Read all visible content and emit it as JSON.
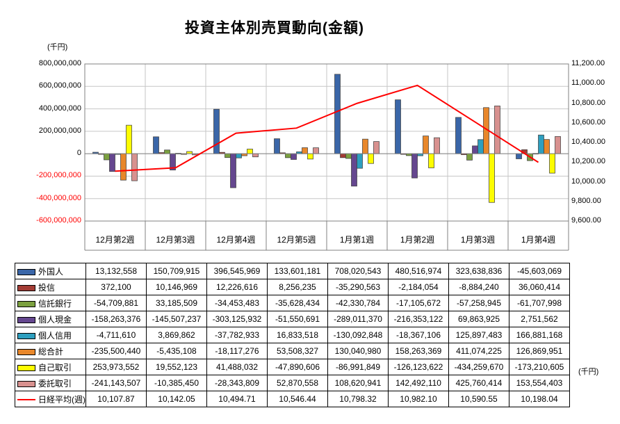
{
  "title": "投資主体別売買動向(金額)",
  "left_axis_unit": "(千円)",
  "right_axis_unit": "(千円)",
  "chart_data": {
    "type": "bar+line",
    "title": "投資主体別売買動向(金額)",
    "legend_position": "table-left-column",
    "grid": true,
    "categories": [
      "12月第2週",
      "12月第3週",
      "12月第4週",
      "12月第5週",
      "1月第1週",
      "1月第2週",
      "1月第3週",
      "1月第4週"
    ],
    "left_axis": {
      "min": -600000000,
      "max": 800000000,
      "step": 200000000,
      "unit": "(千円)"
    },
    "right_axis": {
      "min": 9600,
      "max": 11200,
      "step": 200,
      "unit": "(千円)"
    },
    "series": [
      {
        "name": "外国人",
        "type": "bar",
        "color": "#3A66A8",
        "values": [
          13132558,
          150709915,
          396545969,
          133601181,
          708020543,
          480516974,
          323638836,
          -45603069
        ]
      },
      {
        "name": "投信",
        "type": "bar",
        "color": "#A33C35",
        "values": [
          372100,
          10146969,
          12226616,
          8256235,
          -35290563,
          -2184054,
          -8884240,
          36060414
        ]
      },
      {
        "name": "信託銀行",
        "type": "bar",
        "color": "#7BA03F",
        "values": [
          -54709881,
          33185509,
          -34453483,
          -35628434,
          -42330784,
          -17105672,
          -57258945,
          -61707998
        ]
      },
      {
        "name": "個人現金",
        "type": "bar",
        "color": "#65478F",
        "values": [
          -158263376,
          -145507237,
          -303125932,
          -51550691,
          -289011370,
          -216353122,
          69863925,
          2751562
        ]
      },
      {
        "name": "個人信用",
        "type": "bar",
        "color": "#2E9FBF",
        "values": [
          -4711610,
          3869862,
          -37782933,
          16833518,
          -130092848,
          -18367106,
          125897483,
          166881168
        ]
      },
      {
        "name": "総合計",
        "type": "bar",
        "color": "#E8872B",
        "values": [
          -235500440,
          -5435108,
          -18117276,
          53508327,
          130040980,
          158263369,
          411074225,
          126869951
        ]
      },
      {
        "name": "自己取引",
        "type": "bar",
        "color": "#FDFD00",
        "values": [
          253973552,
          19552123,
          41488032,
          -47890606,
          -86991849,
          -126123622,
          -434259670,
          -173210605
        ]
      },
      {
        "name": "委託取引",
        "type": "bar",
        "color": "#D8918F",
        "values": [
          -241143507,
          -10385450,
          -28343809,
          52870558,
          108620941,
          142492110,
          425760414,
          153554403
        ]
      },
      {
        "name": "日経平均(週)",
        "type": "line",
        "color": "#FF0000",
        "values": [
          10107.87,
          10142.05,
          10494.71,
          10546.44,
          10798.32,
          10982.1,
          10590.55,
          10198.04
        ]
      }
    ]
  }
}
